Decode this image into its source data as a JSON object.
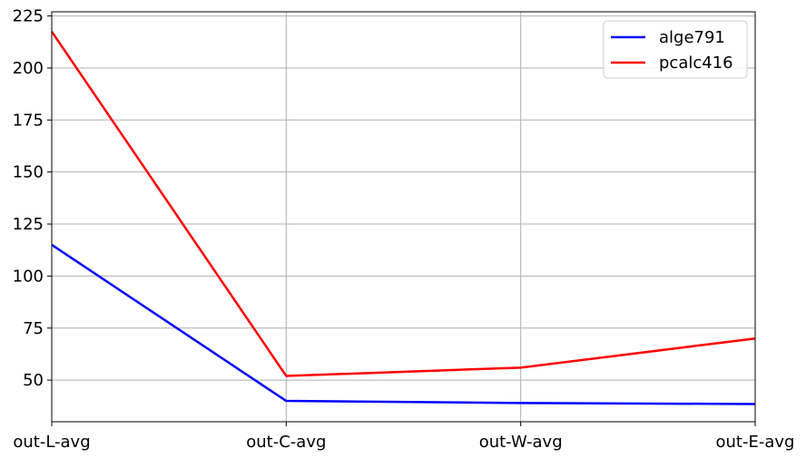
{
  "chart_data": {
    "type": "line",
    "title": "",
    "xlabel": "",
    "ylabel": "",
    "categories": [
      "out-L-avg",
      "out-C-avg",
      "out-W-avg",
      "out-E-avg"
    ],
    "series": [
      {
        "name": "alge791",
        "color": "#0000ff",
        "values": [
          115,
          40,
          39,
          38.5
        ]
      },
      {
        "name": "pcalc416",
        "color": "#ff0000",
        "values": [
          217.5,
          52,
          56,
          70
        ]
      }
    ],
    "ylim": [
      30,
      227
    ],
    "yticks": [
      50,
      75,
      100,
      125,
      150,
      175,
      200,
      225
    ],
    "grid": true,
    "legend_position": "top-right"
  }
}
